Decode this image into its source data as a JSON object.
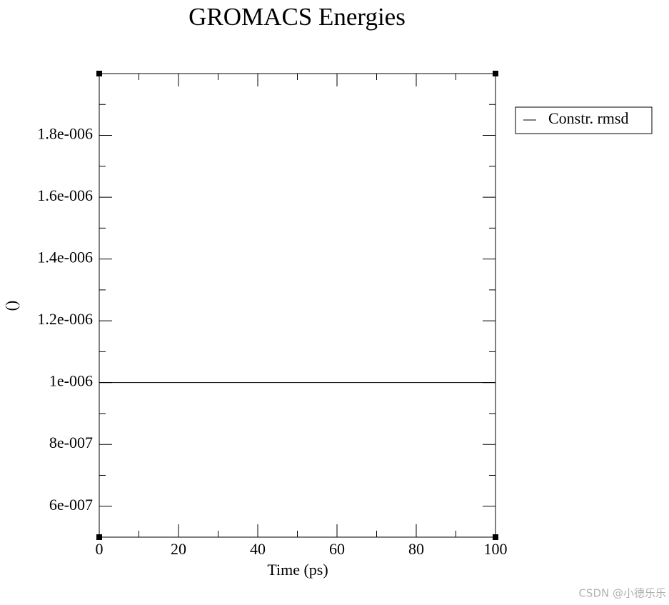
{
  "chart_data": {
    "type": "line",
    "title": "GROMACS Energies",
    "x_label": "Time (ps)",
    "y_label": "()",
    "x": [
      0,
      100
    ],
    "series": [
      {
        "name": "Constr. rmsd",
        "color": "#000000",
        "values": [
          1e-06,
          1e-06
        ]
      }
    ],
    "xlim": [
      0,
      100
    ],
    "xticks": [
      0,
      20,
      40,
      60,
      80,
      100
    ],
    "ylim": [
      5e-07,
      2e-06
    ],
    "yticks": [
      {
        "value": 6e-07,
        "label": "6e-007"
      },
      {
        "value": 8e-07,
        "label": "8e-007"
      },
      {
        "value": 1e-06,
        "label": "1e-006"
      },
      {
        "value": 1.2e-06,
        "label": "1.2e-006"
      },
      {
        "value": 1.4e-06,
        "label": "1.4e-006"
      },
      {
        "value": 1.6e-06,
        "label": "1.6e-006"
      },
      {
        "value": 1.8e-06,
        "label": "1.8e-006"
      }
    ],
    "legend": "upper-right-outside",
    "grid": false,
    "watermark": "CSDN @小德乐乐"
  }
}
